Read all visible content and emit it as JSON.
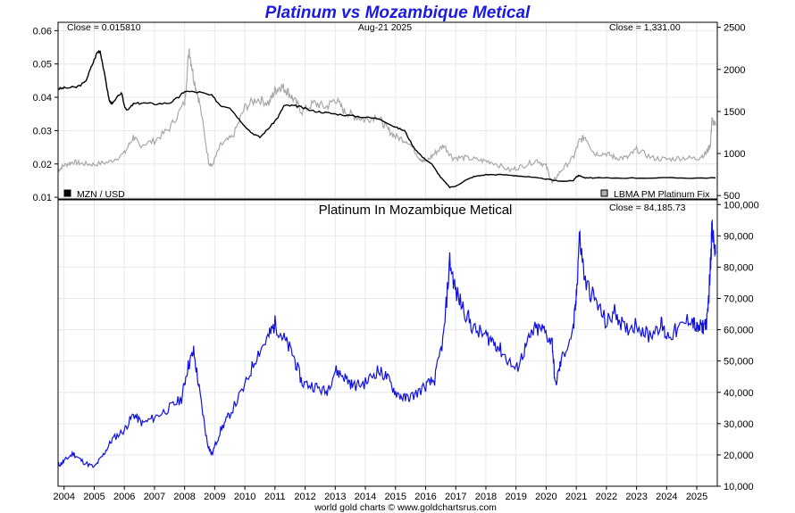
{
  "title": "Platinum vs Mozambique Metical",
  "footer": "world gold charts © www.goldchartsrus.com",
  "chart_data": [
    {
      "type": "line",
      "date_label": "Aug-21  2025",
      "close_left": "Close = 0.015810",
      "close_right": "Close = 1,331.00",
      "y_left_ticks": [
        "0.06",
        "0.05",
        "0.04",
        "0.03",
        "0.02",
        "0.01"
      ],
      "y_right_ticks": [
        "2500",
        "2000",
        "1500",
        "1000",
        "500"
      ],
      "ylim_left": [
        0.0095,
        0.0625
      ],
      "ylim_right": [
        460,
        2560
      ],
      "legend_left": "MZN / USD",
      "legend_right": "LBMA PM Platinum Fix",
      "series": [
        {
          "name": "MZN / USD",
          "axis": "left",
          "color": "#000000",
          "x": [
            2003.8,
            2004.0,
            2004.4,
            2004.7,
            2004.9,
            2005.1,
            2005.2,
            2005.4,
            2005.5,
            2005.6,
            2005.9,
            2006.0,
            2006.1,
            2006.3,
            2006.6,
            2007.0,
            2007.5,
            2007.8,
            2008.0,
            2008.5,
            2008.9,
            2009.2,
            2009.5,
            2009.8,
            2010.2,
            2010.5,
            2010.8,
            2011.1,
            2011.3,
            2011.6,
            2011.8,
            2012.2,
            2012.6,
            2013.0,
            2013.5,
            2014.0,
            2014.5,
            2015.0,
            2015.3,
            2015.6,
            2015.9,
            2016.2,
            2016.5,
            2016.8,
            2017.0,
            2017.3,
            2017.6,
            2018.0,
            2018.5,
            2019.0,
            2019.5,
            2020.0,
            2020.3,
            2020.6,
            2020.9,
            2021.0,
            2021.1,
            2021.3,
            2021.6,
            2022.0,
            2023.0,
            2024.0,
            2025.0,
            2025.62
          ],
          "y": [
            0.0425,
            0.0428,
            0.043,
            0.0445,
            0.049,
            0.0535,
            0.054,
            0.044,
            0.039,
            0.038,
            0.0415,
            0.0375,
            0.036,
            0.038,
            0.0383,
            0.038,
            0.0383,
            0.04,
            0.0418,
            0.0415,
            0.0405,
            0.0375,
            0.037,
            0.0335,
            0.0295,
            0.028,
            0.0308,
            0.034,
            0.0375,
            0.0375,
            0.0372,
            0.036,
            0.0355,
            0.035,
            0.0345,
            0.034,
            0.0335,
            0.031,
            0.03,
            0.025,
            0.022,
            0.02,
            0.016,
            0.013,
            0.0133,
            0.015,
            0.0162,
            0.0168,
            0.0168,
            0.0165,
            0.016,
            0.0155,
            0.015,
            0.0148,
            0.015,
            0.0162,
            0.0165,
            0.0158,
            0.0158,
            0.0158,
            0.0158,
            0.0158,
            0.0158,
            0.0158
          ]
        },
        {
          "name": "LBMA PM Platinum Fix",
          "axis": "right",
          "color": "#a8a8a8",
          "x": [
            2003.8,
            2004.0,
            2004.3,
            2004.6,
            2005.0,
            2005.5,
            2006.0,
            2006.3,
            2006.5,
            2007.0,
            2007.5,
            2008.0,
            2008.15,
            2008.3,
            2008.5,
            2008.8,
            2008.9,
            2009.2,
            2009.6,
            2010.0,
            2010.4,
            2010.8,
            2011.0,
            2011.2,
            2011.4,
            2011.6,
            2011.9,
            2012.3,
            2012.7,
            2013.0,
            2013.3,
            2013.6,
            2014.0,
            2014.4,
            2014.7,
            2015.0,
            2015.4,
            2015.8,
            2016.0,
            2016.3,
            2016.6,
            2016.9,
            2017.3,
            2017.8,
            2018.2,
            2018.8,
            2019.2,
            2019.7,
            2020.0,
            2020.2,
            2020.5,
            2020.9,
            2021.1,
            2021.3,
            2021.6,
            2022.0,
            2022.3,
            2022.7,
            2023.0,
            2023.5,
            2024.0,
            2024.5,
            2025.0,
            2025.3,
            2025.45,
            2025.5,
            2025.62
          ],
          "y": [
            800,
            860,
            900,
            880,
            870,
            900,
            1000,
            1200,
            1100,
            1150,
            1300,
            1600,
            2250,
            1900,
            1600,
            900,
            850,
            1100,
            1200,
            1550,
            1650,
            1600,
            1750,
            1800,
            1750,
            1650,
            1500,
            1600,
            1550,
            1650,
            1500,
            1450,
            1400,
            1450,
            1300,
            1200,
            1150,
            950,
            900,
            1000,
            1100,
            950,
            950,
            920,
            900,
            800,
            850,
            920,
            850,
            650,
            800,
            950,
            1150,
            1200,
            1000,
            1000,
            950,
            950,
            1050,
            950,
            930,
            950,
            940,
            1000,
            1100,
            1400,
            1331
          ]
        }
      ]
    },
    {
      "type": "line",
      "title": "Platinum In Mozambique Metical",
      "close": "Close = 84,185.73",
      "x_ticks": [
        "2004",
        "2005",
        "2006",
        "2007",
        "2008",
        "2009",
        "2010",
        "2011",
        "2012",
        "2013",
        "2014",
        "2015",
        "2016",
        "2017",
        "2018",
        "2019",
        "2020",
        "2021",
        "2022",
        "2023",
        "2024",
        "2025"
      ],
      "y_ticks": [
        "100,000",
        "90,000",
        "80,000",
        "70,000",
        "60,000",
        "50,000",
        "40,000",
        "30,000",
        "20,000",
        "10,000"
      ],
      "ylim": [
        10000,
        101500
      ],
      "series": [
        {
          "name": "Platinum In Mozambique Metical",
          "color": "#1010e0",
          "x": [
            2003.8,
            2004.0,
            2004.3,
            2004.6,
            2005.0,
            2005.3,
            2005.6,
            2006.0,
            2006.3,
            2006.6,
            2007.0,
            2007.5,
            2007.9,
            2008.1,
            2008.3,
            2008.5,
            2008.75,
            2008.9,
            2009.2,
            2009.5,
            2010.0,
            2010.4,
            2010.8,
            2011.0,
            2011.3,
            2011.6,
            2011.9,
            2012.3,
            2012.7,
            2013.0,
            2013.3,
            2013.6,
            2014.0,
            2014.4,
            2014.7,
            2015.0,
            2015.3,
            2015.6,
            2016.0,
            2016.3,
            2016.6,
            2016.8,
            2017.0,
            2017.3,
            2017.6,
            2018.0,
            2018.3,
            2018.6,
            2019.0,
            2019.3,
            2019.6,
            2019.9,
            2020.2,
            2020.3,
            2020.5,
            2020.9,
            2021.0,
            2021.1,
            2021.3,
            2021.6,
            2022.0,
            2022.3,
            2022.6,
            2023.0,
            2023.4,
            2023.8,
            2024.0,
            2024.4,
            2024.8,
            2025.0,
            2025.2,
            2025.35,
            2025.45,
            2025.5,
            2025.62
          ],
          "y": [
            16500,
            18000,
            20500,
            18000,
            16000,
            20000,
            25000,
            28000,
            33000,
            30000,
            32000,
            35000,
            38000,
            48000,
            53000,
            40000,
            24000,
            20000,
            28000,
            33000,
            42000,
            52000,
            58000,
            62000,
            57000,
            52000,
            43000,
            42000,
            40000,
            47000,
            45000,
            42000,
            43000,
            47000,
            45000,
            40000,
            38000,
            39000,
            42000,
            44000,
            58000,
            82000,
            72000,
            66000,
            60000,
            58000,
            56000,
            52000,
            47000,
            54000,
            60000,
            60000,
            56000,
            42000,
            50000,
            60000,
            70000,
            90000,
            75000,
            70000,
            62000,
            66000,
            60000,
            62000,
            58000,
            62000,
            58000,
            60000,
            64000,
            60000,
            61000,
            63000,
            80000,
            92000,
            84186
          ]
        }
      ]
    }
  ]
}
